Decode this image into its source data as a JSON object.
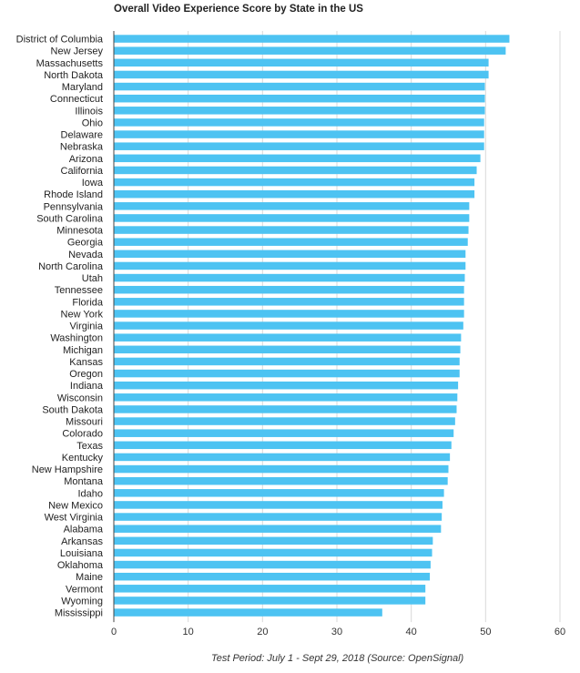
{
  "chart_data": {
    "type": "bar",
    "orientation": "horizontal",
    "title": "Overall Video Experience Score by State in the US",
    "footnote": "Test Period: July 1 - Sept 29, 2018 (Source: OpenSignal)",
    "xlim": [
      0,
      60
    ],
    "xticks": [
      "0",
      "10",
      "20",
      "30",
      "40",
      "50",
      "60"
    ],
    "grid": true,
    "bar_color": "#4dc3f2",
    "categories": [
      "District of Columbia",
      "New Jersey",
      "Massachusetts",
      "North Dakota",
      "Maryland",
      "Connecticut",
      "Illinois",
      "Ohio",
      "Delaware",
      "Nebraska",
      "Arizona",
      "California",
      "Iowa",
      "Rhode Island",
      "Pennsylvania",
      "South Carolina",
      "Minnesota",
      "Georgia",
      "Nevada",
      "North Carolina",
      "Utah",
      "Tennessee",
      "Florida",
      "New York",
      "Virginia",
      "Washington",
      "Michigan",
      "Kansas",
      "Oregon",
      "Indiana",
      "Wisconsin",
      "South Dakota",
      "Missouri",
      "Colorado",
      "Texas",
      "Kentucky",
      "New Hampshire",
      "Montana",
      "Idaho",
      "New Mexico",
      "West Virginia",
      "Alabama",
      "Arkansas",
      "Louisiana",
      "Oklahoma",
      "Maine",
      "Vermont",
      "Wyoming",
      "Mississippi"
    ],
    "values": [
      53.2,
      52.7,
      50.4,
      50.4,
      49.9,
      49.9,
      49.9,
      49.8,
      49.8,
      49.8,
      49.3,
      48.8,
      48.5,
      48.5,
      47.8,
      47.8,
      47.7,
      47.6,
      47.3,
      47.3,
      47.2,
      47.1,
      47.1,
      47.1,
      47.0,
      46.7,
      46.6,
      46.5,
      46.5,
      46.3,
      46.2,
      46.1,
      45.9,
      45.7,
      45.4,
      45.2,
      45.0,
      44.9,
      44.4,
      44.2,
      44.1,
      44.0,
      42.9,
      42.8,
      42.6,
      42.5,
      41.9,
      41.9,
      36.1
    ]
  }
}
